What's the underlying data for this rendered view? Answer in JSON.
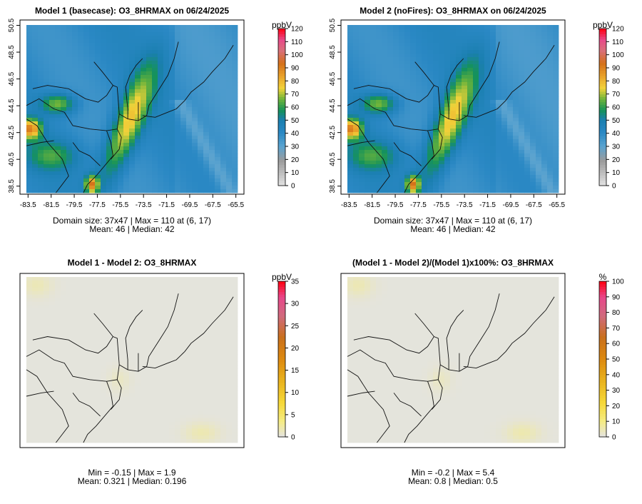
{
  "chart_data": [
    {
      "type": "heatmap",
      "id": "p1",
      "title": "Model 1 (basecase): O3_8HRMAX on 06/24/2025",
      "x_ticks": [
        "-83.5",
        "-81.5",
        "-79.5",
        "-77.5",
        "-75.5",
        "-73.5",
        "-71.5",
        "-69.5",
        "-67.5",
        "-65.5"
      ],
      "y_ticks": [
        "38.5",
        "40.5",
        "42.5",
        "44.5",
        "46.5",
        "48.5",
        "50.5"
      ],
      "xlim": [
        -84.2,
        -64.8
      ],
      "ylim": [
        37.9,
        50.9
      ],
      "colorbar": {
        "unit": "ppbV",
        "ticks": [
          "0",
          "10",
          "20",
          "30",
          "40",
          "50",
          "60",
          "70",
          "80",
          "90",
          "100",
          "110",
          "120"
        ],
        "min": 0,
        "max": 120,
        "palette": "ozone"
      },
      "field": "ozone",
      "stats_line1": "Domain size: 37x47 | Max = 110 at (6, 17)",
      "stats_line2": "Mean: 46 |  Median: 42"
    },
    {
      "type": "heatmap",
      "id": "p2",
      "title": "Model 2 (noFires): O3_8HRMAX on 06/24/2025",
      "x_ticks": [
        "-83.5",
        "-81.5",
        "-79.5",
        "-77.5",
        "-75.5",
        "-73.5",
        "-71.5",
        "-69.5",
        "-67.5",
        "-65.5"
      ],
      "y_ticks": [
        "38.5",
        "40.5",
        "42.5",
        "44.5",
        "46.5",
        "48.5",
        "50.5"
      ],
      "xlim": [
        -84.2,
        -64.8
      ],
      "ylim": [
        37.9,
        50.9
      ],
      "colorbar": {
        "unit": "ppbV",
        "ticks": [
          "0",
          "10",
          "20",
          "30",
          "40",
          "50",
          "60",
          "70",
          "80",
          "90",
          "100",
          "110",
          "120"
        ],
        "min": 0,
        "max": 120,
        "palette": "ozone"
      },
      "field": "ozone",
      "stats_line1": "Domain size: 37x47 | Max = 110 at (6, 17)",
      "stats_line2": "Mean: 46 |  Median: 42"
    },
    {
      "type": "heatmap",
      "id": "p3",
      "title": "Model 1 - Model 2: O3_8HRMAX",
      "x_ticks": [],
      "y_ticks": [],
      "xlim": [
        -84.2,
        -64.8
      ],
      "ylim": [
        37.9,
        50.9
      ],
      "colorbar": {
        "unit": "ppbV",
        "ticks": [
          "0",
          "5",
          "10",
          "15",
          "20",
          "25",
          "30",
          "35"
        ],
        "min": 0,
        "max": 35,
        "palette": "diff"
      },
      "field": "diff",
      "stats_line1": "Min = -0.15 | Max = 1.9",
      "stats_line2": "Mean: 0.321 |  Median: 0.196"
    },
    {
      "type": "heatmap",
      "id": "p4",
      "title": "(Model 1 - Model 2)/(Model 1)x100%: O3_8HRMAX",
      "x_ticks": [],
      "y_ticks": [],
      "xlim": [
        -84.2,
        -64.8
      ],
      "ylim": [
        37.9,
        50.9
      ],
      "colorbar": {
        "unit": "%",
        "ticks": [
          "0",
          "10",
          "20",
          "30",
          "40",
          "50",
          "60",
          "70",
          "80",
          "90",
          "100"
        ],
        "min": 0,
        "max": 100,
        "palette": "diff"
      },
      "field": "pct",
      "stats_line1": "Min = -0.2 | Max = 5.4",
      "stats_line2": "Mean: 0.8 |  Median: 0.5"
    }
  ]
}
